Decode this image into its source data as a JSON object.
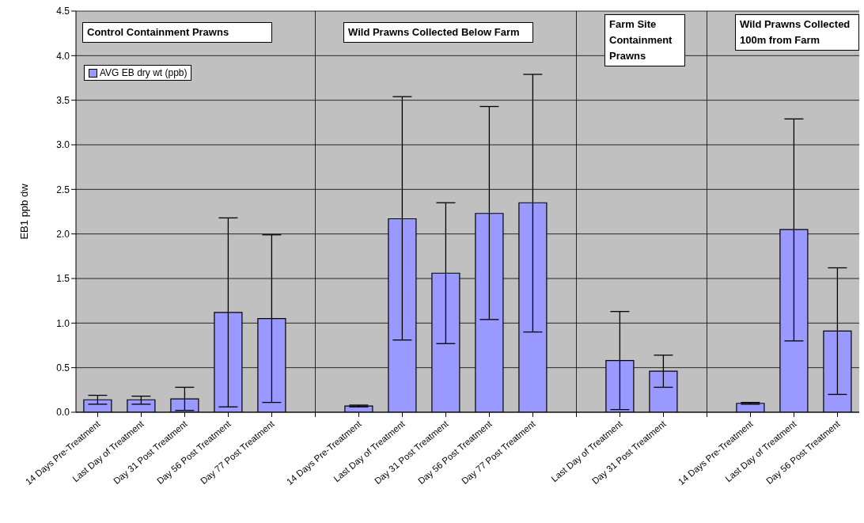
{
  "chart_data": {
    "type": "bar",
    "categories": [
      "14 Days Pre-Treatment",
      "Last Day of Treatment",
      "Day 31 Post Treatment",
      "Day 56 Post Treatment",
      "Day 77 Post Treatment",
      null,
      "14 Days Pre-Treatment",
      "Last Day of Treatment",
      "Day 31 Post Treatment",
      "Day 56 Post Treatment",
      "Day 77 Post Treatment",
      null,
      "Last Day of Treatment",
      "Day 31 Post Treatment",
      null,
      "14 Days Pre-Treatment",
      "Last Day of Treatment",
      "Day 56 Post Treatment"
    ],
    "series": [
      {
        "name": "AVG EB dry wt (ppb)",
        "color": "#9999ff",
        "values": [
          0.14,
          0.14,
          0.15,
          1.12,
          1.05,
          null,
          0.07,
          2.17,
          1.56,
          2.23,
          2.35,
          null,
          0.58,
          0.46,
          null,
          0.1,
          2.05,
          0.91
        ],
        "errors": [
          [
            0.09,
            0.19
          ],
          [
            0.09,
            0.18
          ],
          [
            0.02,
            0.28
          ],
          [
            0.06,
            2.18
          ],
          [
            0.11,
            1.99
          ],
          null,
          [
            0.06,
            0.08
          ],
          [
            0.81,
            3.54
          ],
          [
            0.77,
            2.35
          ],
          [
            1.04,
            3.43
          ],
          [
            0.9,
            3.79
          ],
          null,
          [
            0.03,
            1.13
          ],
          [
            0.28,
            0.64
          ],
          null,
          [
            0.09,
            0.11
          ],
          [
            0.8,
            3.29
          ],
          [
            0.2,
            1.62
          ]
        ]
      }
    ],
    "ylabel": "EB1 ppb dw",
    "ylim": [
      0,
      4.5
    ],
    "yticks": [
      {
        "value": 0,
        "label": "0.0"
      },
      {
        "value": 0.5,
        "label": "0.5"
      },
      {
        "value": 1,
        "label": "1.0"
      },
      {
        "value": 1.5,
        "label": "1.5"
      },
      {
        "value": 2,
        "label": "2.0"
      },
      {
        "value": 2.5,
        "label": "2.5"
      },
      {
        "value": 3,
        "label": "3.0"
      },
      {
        "value": 3.5,
        "label": "3.5"
      },
      {
        "value": 4,
        "label": "4.0"
      },
      {
        "value": 4.5,
        "label": "4.5"
      }
    ],
    "grid": true,
    "legend": "top left",
    "annotations": [
      "Control Containment Prawns",
      "Wild Prawns Collected Below Farm",
      "Farm Site Containment Prawns",
      "Wild Prawns Collected 100m from Farm"
    ]
  }
}
